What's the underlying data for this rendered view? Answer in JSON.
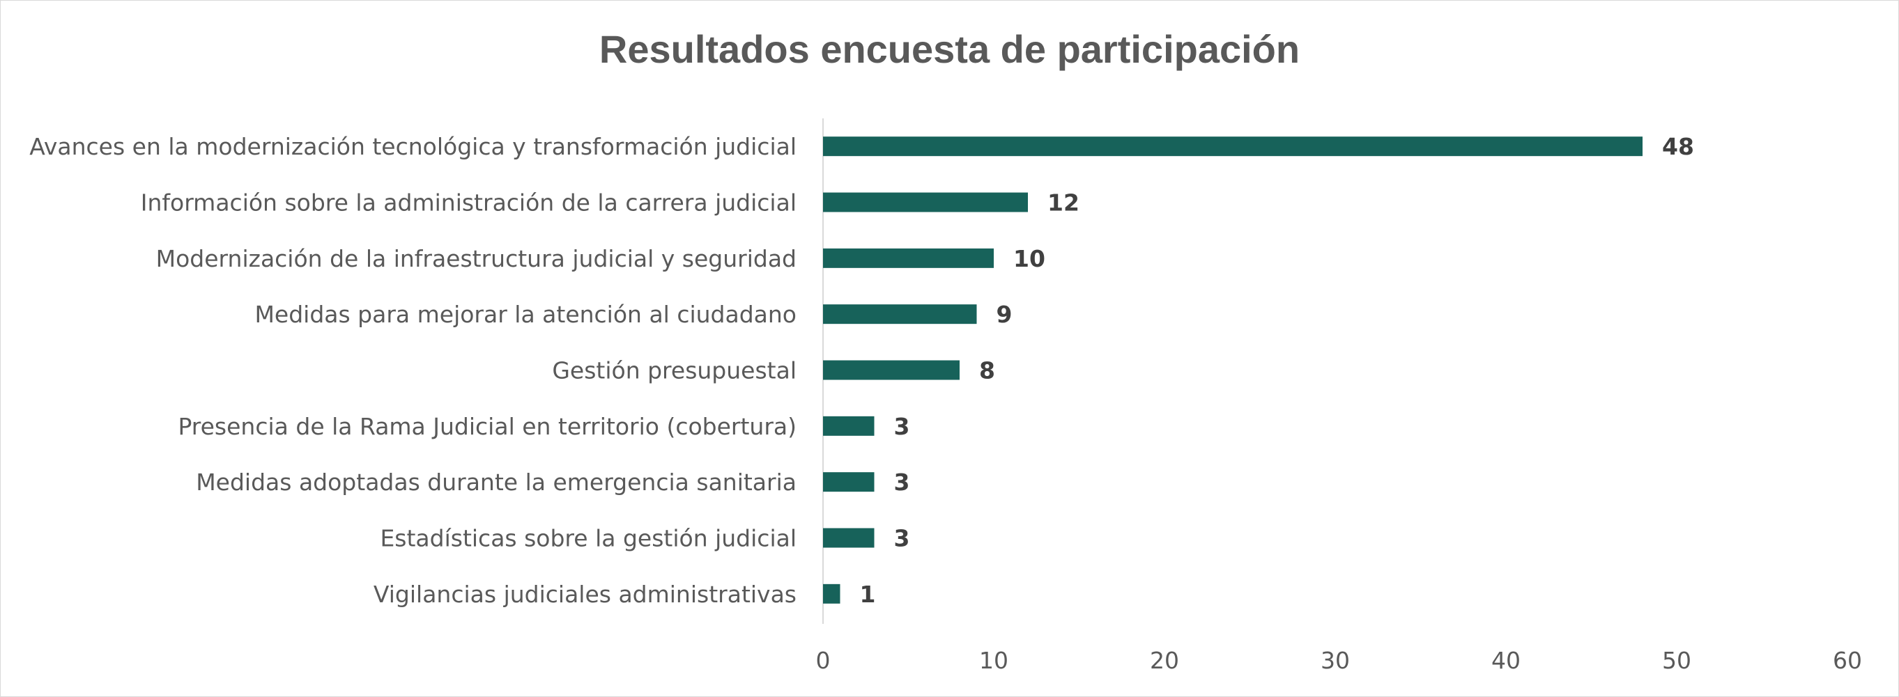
{
  "chart_data": {
    "type": "bar",
    "orientation": "horizontal",
    "title": "Resultados encuesta de participación",
    "categories": [
      "Avances en la modernización tecnológica y transformación judicial",
      "Información sobre la administración de la carrera judicial",
      "Modernización de la infraestructura judicial y seguridad",
      "Medidas para mejorar la atención al ciudadano",
      "Gestión presupuestal",
      "Presencia de la Rama Judicial en territorio (cobertura)",
      "Medidas adoptadas durante la emergencia sanitaria",
      "Estadísticas sobre la gestión judicial",
      "Vigilancias judiciales administrativas"
    ],
    "values": [
      48,
      12,
      10,
      9,
      8,
      3,
      3,
      3,
      1
    ],
    "xlim": [
      0,
      60
    ],
    "xticks": [
      0,
      10,
      20,
      30,
      40,
      50,
      60
    ],
    "xlabel": "",
    "ylabel": "",
    "grid": false,
    "legend": "none",
    "data_labels": true,
    "bar_color": "#17625A"
  }
}
